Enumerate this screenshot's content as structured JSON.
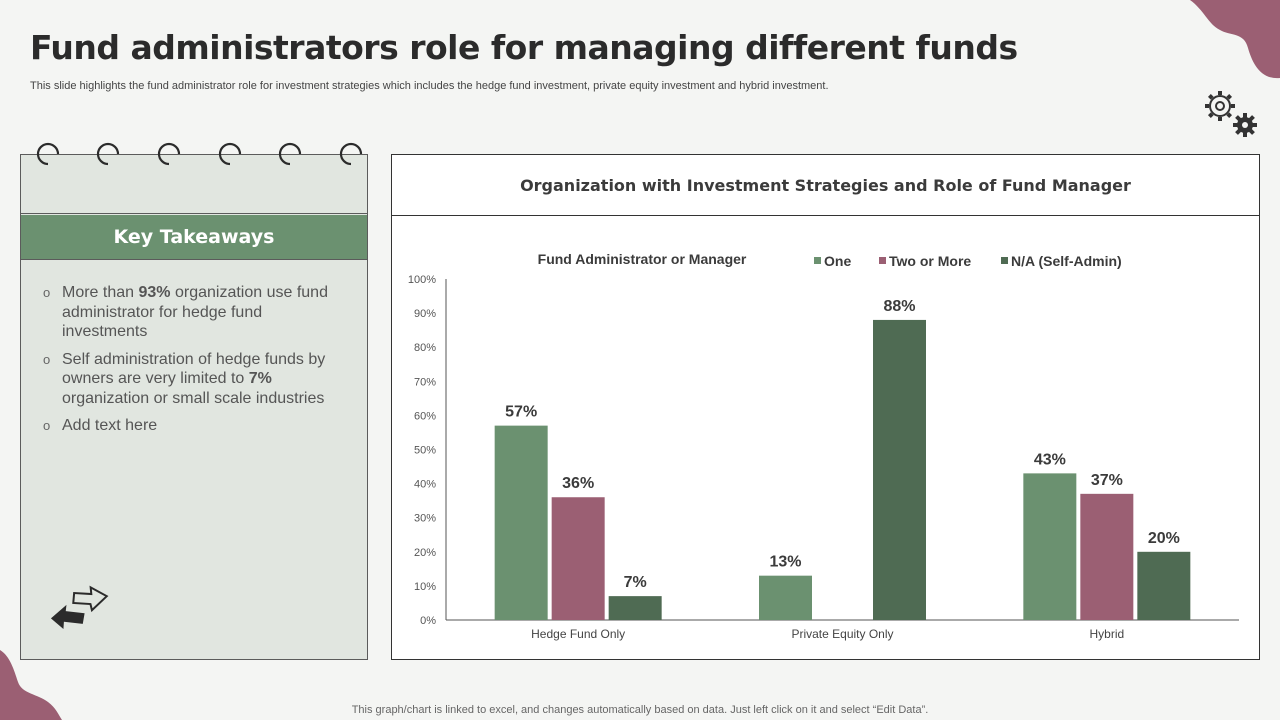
{
  "title": "Fund administrators role for managing different funds",
  "subtitle": "This slide highlights the fund administrator role for investment strategies which includes the hedge fund investment, private equity investment and hybrid investment.",
  "key_takeaways": {
    "heading": "Key Takeaways",
    "items": [
      {
        "pre": "More than ",
        "bold": "93%",
        "post": " organization use fund administrator for hedge fund investments"
      },
      {
        "pre": "Self administration of hedge funds by owners are very limited to ",
        "bold": "7%",
        "post": " organization or small scale industries"
      },
      {
        "pre": "Add text here",
        "bold": "",
        "post": ""
      }
    ],
    "bullet_char": "o"
  },
  "chart_panel": {
    "heading": "Organization with Investment Strategies and Role of Fund Manager"
  },
  "chart_data": {
    "type": "bar",
    "title": "Fund Administrator or Manager",
    "categories": [
      "Hedge Fund Only",
      "Private Equity Only",
      "Hybrid"
    ],
    "series": [
      {
        "name": "One",
        "color": "#6b9170",
        "values": [
          57,
          13,
          43
        ]
      },
      {
        "name": "Two or More",
        "color": "#9b5f73",
        "values": [
          36,
          null,
          37
        ]
      },
      {
        "name": "N/A (Self-Admin)",
        "color": "#4f6b53",
        "values": [
          7,
          88,
          20
        ]
      }
    ],
    "ylim": [
      0,
      100
    ],
    "yticks": [
      0,
      10,
      20,
      30,
      40,
      50,
      60,
      70,
      80,
      90,
      100
    ],
    "ytick_suffix": "%",
    "data_label_suffix": "%",
    "legend_position": "top",
    "grid": false
  },
  "footer": "This graph/chart is linked to excel, and changes automatically based on data. Just left click on it and select “Edit Data”.",
  "colors": {
    "accent_green": "#6b9170",
    "accent_mauve": "#9b5f73",
    "dark_green": "#4f6b53",
    "panel_bg": "#e1e6e0"
  }
}
